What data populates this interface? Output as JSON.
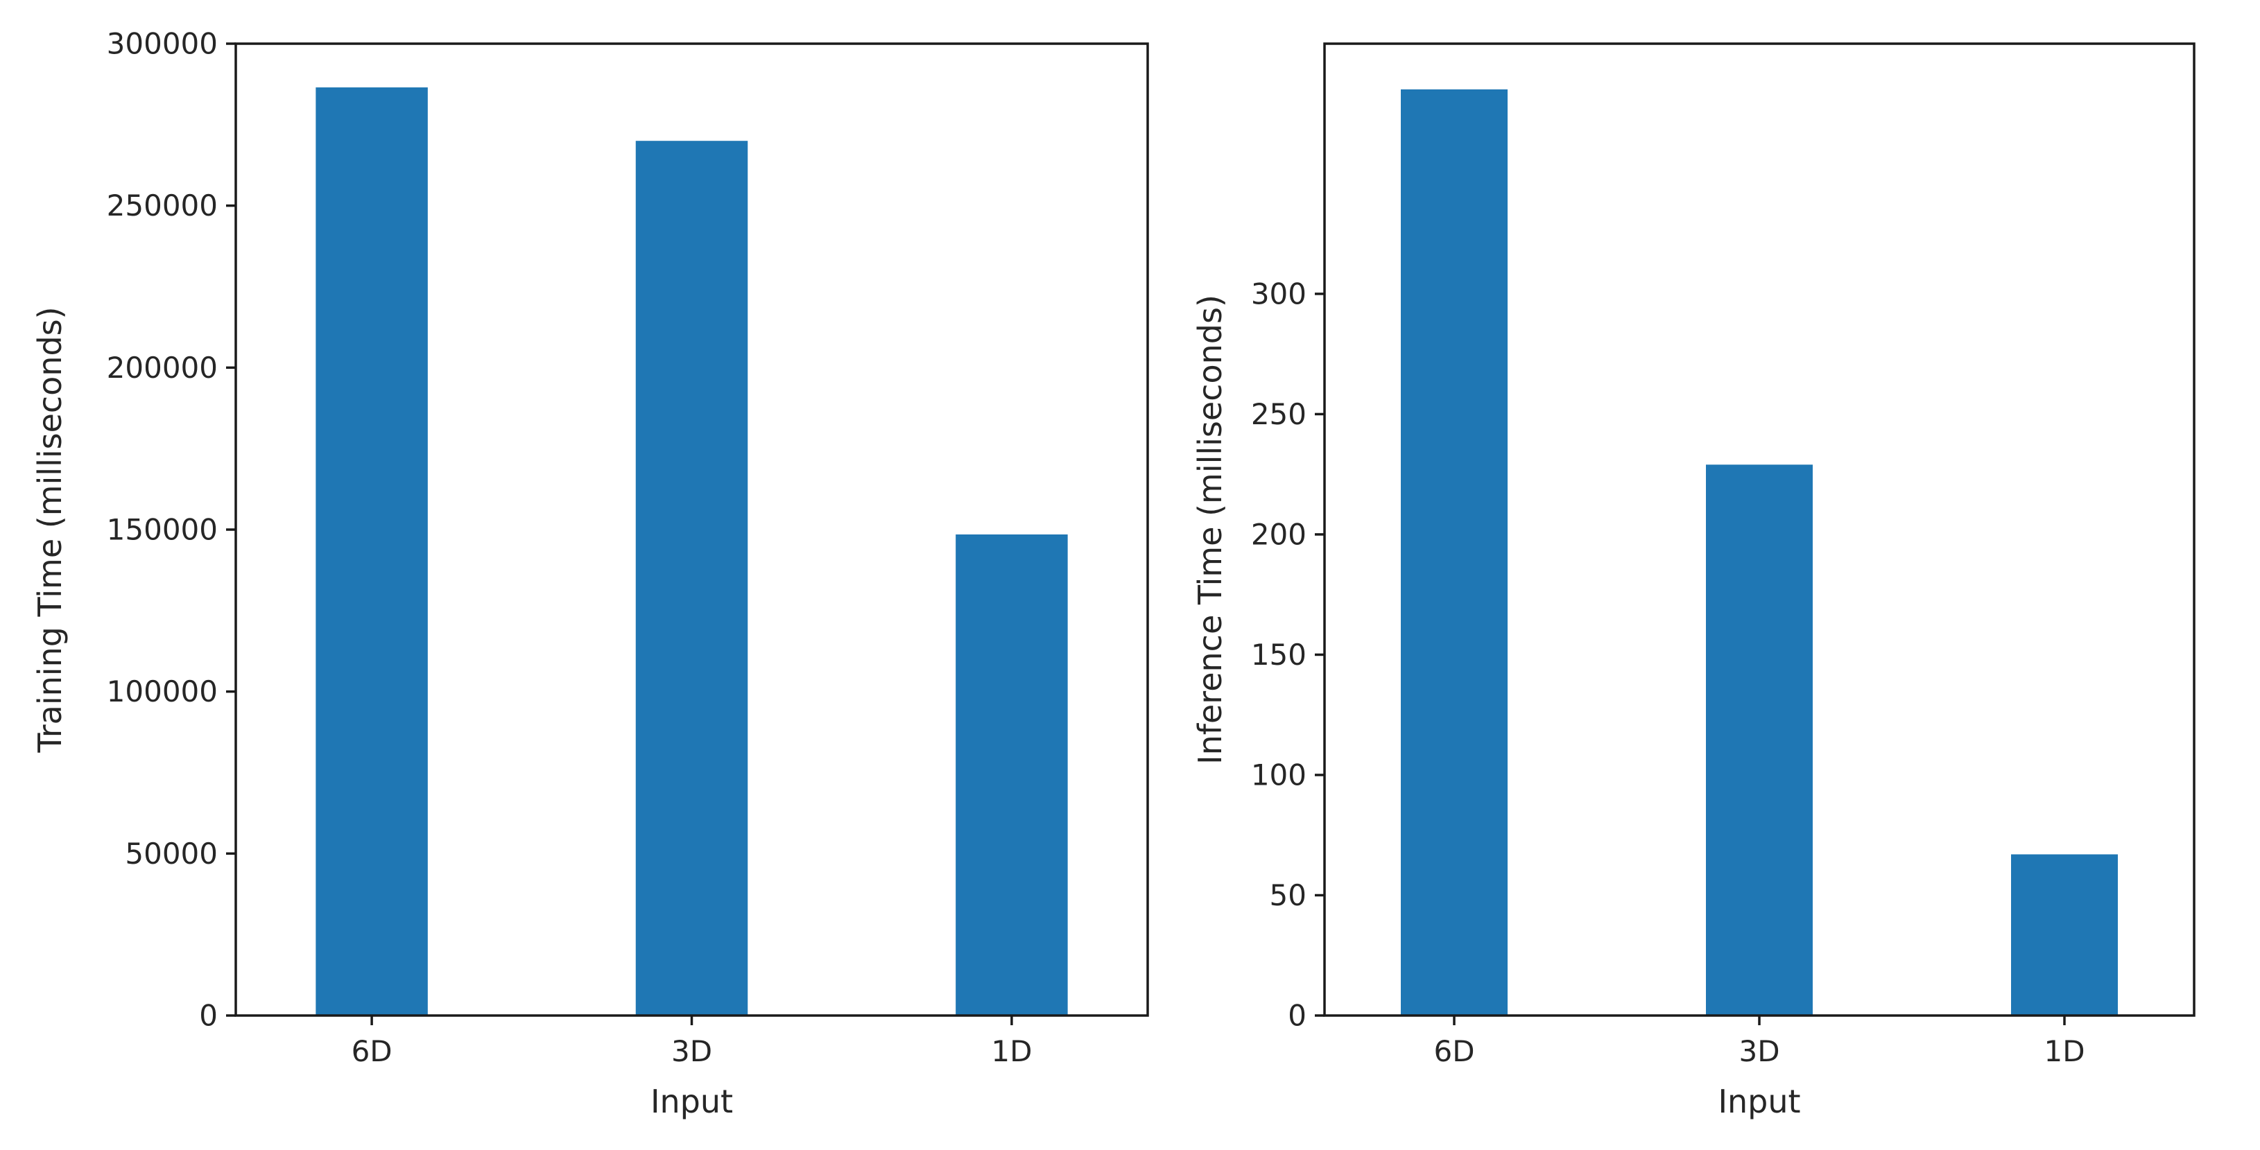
{
  "chart_data": [
    {
      "type": "bar",
      "title": "",
      "xlabel": "Input",
      "ylabel": "Training Time (milliseconds)",
      "categories": [
        "6D",
        "3D",
        "1D"
      ],
      "values": [
        286500,
        270000,
        148500
      ],
      "ylim": [
        0,
        300000
      ],
      "yticks": [
        0,
        50000,
        100000,
        150000,
        200000,
        250000,
        300000
      ],
      "ytick_labels": [
        "0",
        "50000",
        "100000",
        "150000",
        "200000",
        "250000",
        "300000"
      ],
      "bar_color": "#1f77b4",
      "grid": false,
      "legend": "none"
    },
    {
      "type": "bar",
      "title": "",
      "xlabel": "Input",
      "ylabel": "Inference Time (milliseconds)",
      "categories": [
        "6D",
        "3D",
        "1D"
      ],
      "values": [
        385,
        229,
        67
      ],
      "ylim": [
        0,
        404
      ],
      "yticks": [
        0,
        50,
        100,
        150,
        200,
        250,
        300
      ],
      "ytick_labels": [
        "0",
        "50",
        "100",
        "150",
        "200",
        "250",
        "300"
      ],
      "bar_color": "#1f77b4",
      "grid": false,
      "legend": "none"
    }
  ]
}
